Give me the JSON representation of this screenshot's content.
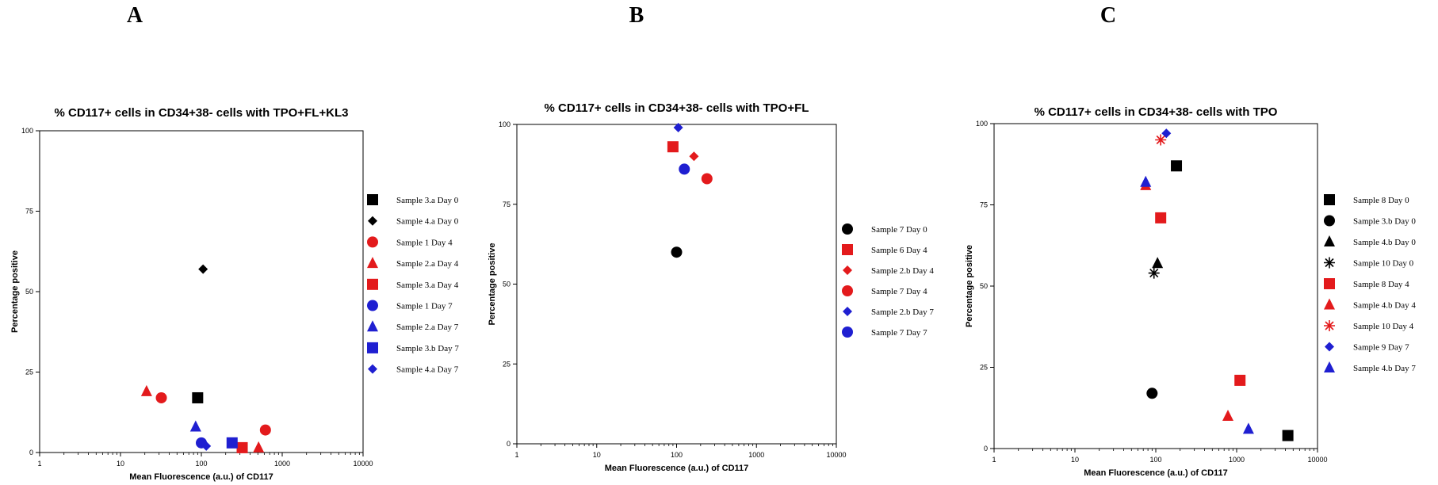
{
  "panels": [
    {
      "letter": "A"
    },
    {
      "letter": "B"
    },
    {
      "letter": "C"
    }
  ],
  "chart_data": [
    {
      "type": "scatter",
      "title": "% CD117+ cells in CD34+38- cells with TPO+FL+KL3",
      "xlabel": "Mean Fluorescence (a.u.) of      CD117",
      "ylabel": "Percentage positive",
      "xscale": "log",
      "xlim": [
        1,
        10000
      ],
      "ylim": [
        0,
        100
      ],
      "xticks": [
        "1",
        "10",
        "100",
        "1000",
        "10000"
      ],
      "yticks": [
        "0",
        "25",
        "50",
        "75",
        "100"
      ],
      "grid": false,
      "legend_position": "right",
      "series": [
        {
          "name": "Sample 3.a Day 0",
          "marker": "square",
          "color": "#000000",
          "points": [
            [
              90,
              17
            ]
          ]
        },
        {
          "name": "Sample 4.a Day 0",
          "marker": "diamond",
          "color": "#000000",
          "points": [
            [
              105,
              57
            ]
          ]
        },
        {
          "name": "Sample 1 Day 4",
          "marker": "circle",
          "color": "#e31a1c",
          "points": [
            [
              32,
              17
            ],
            [
              620,
              7
            ]
          ]
        },
        {
          "name": "Sample 2.a Day 4",
          "marker": "triangle",
          "color": "#e31a1c",
          "points": [
            [
              21,
              19
            ],
            [
              510,
              1.5
            ]
          ]
        },
        {
          "name": "Sample 3.a Day 4",
          "marker": "square",
          "color": "#e31a1c",
          "points": [
            [
              320,
              1.5
            ]
          ]
        },
        {
          "name": "Sample 1 Day 7",
          "marker": "circle",
          "color": "#1f1fd1",
          "points": [
            [
              100,
              3
            ]
          ]
        },
        {
          "name": "Sample 2.a Day 7",
          "marker": "triangle",
          "color": "#1f1fd1",
          "points": [
            [
              85,
              8
            ]
          ]
        },
        {
          "name": "Sample 3.b Day 7",
          "marker": "square",
          "color": "#1f1fd1",
          "points": [
            [
              240,
              3
            ]
          ]
        },
        {
          "name": "Sample 4.a Day 7",
          "marker": "diamond",
          "color": "#1f1fd1",
          "points": [
            [
              115,
              2
            ]
          ]
        }
      ]
    },
    {
      "type": "scatter",
      "title": "% CD117+ cells in CD34+38- cells with TPO+FL",
      "xlabel": "Mean Fluorescence (a.u.) of      CD117",
      "ylabel": "Percentage positive",
      "xscale": "log",
      "xlim": [
        1,
        10000
      ],
      "ylim": [
        0,
        100
      ],
      "xticks": [
        "1",
        "10",
        "100",
        "1000",
        "10000"
      ],
      "yticks": [
        "0",
        "25",
        "50",
        "75",
        "100"
      ],
      "grid": false,
      "legend_position": "right",
      "series": [
        {
          "name": "Sample 7 Day 0",
          "marker": "circle",
          "color": "#000000",
          "points": [
            [
              100,
              60
            ]
          ]
        },
        {
          "name": "Sample 6 Day 4",
          "marker": "square",
          "color": "#e31a1c",
          "points": [
            [
              90,
              93
            ]
          ]
        },
        {
          "name": "Sample 2.b Day 4",
          "marker": "diamond",
          "color": "#e31a1c",
          "points": [
            [
              165,
              90
            ]
          ]
        },
        {
          "name": "Sample 7 Day 4",
          "marker": "circle",
          "color": "#e31a1c",
          "points": [
            [
              240,
              83
            ]
          ]
        },
        {
          "name": "Sample 2.b Day 7",
          "marker": "diamond",
          "color": "#1f1fd1",
          "points": [
            [
              105,
              99
            ]
          ]
        },
        {
          "name": "Sample 7 Day 7",
          "marker": "circle",
          "color": "#1f1fd1",
          "points": [
            [
              125,
              86
            ]
          ]
        }
      ]
    },
    {
      "type": "scatter",
      "title": "% CD117+ cells in CD34+38- cells with TPO",
      "xlabel": "Mean Fluorescence (a.u.) of      CD117",
      "ylabel": "Percentage positive",
      "xscale": "log",
      "xlim": [
        1,
        10000
      ],
      "ylim": [
        0,
        100
      ],
      "xticks": [
        "1",
        "10",
        "100",
        "1000",
        "10000"
      ],
      "yticks": [
        "0",
        "25",
        "50",
        "75",
        "100"
      ],
      "grid": false,
      "legend_position": "right",
      "series": [
        {
          "name": "Sample 8 Day 0",
          "marker": "square",
          "color": "#000000",
          "points": [
            [
              180,
              87
            ],
            [
              4300,
              4
            ]
          ]
        },
        {
          "name": "Sample 3.b Day 0",
          "marker": "circle",
          "color": "#000000",
          "points": [
            [
              90,
              17
            ]
          ]
        },
        {
          "name": "Sample 4.b Day 0",
          "marker": "triangle",
          "color": "#000000",
          "points": [
            [
              105,
              57
            ]
          ]
        },
        {
          "name": "Sample 10 Day 0",
          "marker": "star",
          "color": "#000000",
          "points": [
            [
              95,
              54
            ]
          ]
        },
        {
          "name": "Sample 8 Day 4",
          "marker": "square",
          "color": "#e31a1c",
          "points": [
            [
              115,
              71
            ],
            [
              1100,
              21
            ]
          ]
        },
        {
          "name": "Sample 4.b Day 4",
          "marker": "triangle",
          "color": "#e31a1c",
          "points": [
            [
              75,
              81
            ],
            [
              780,
              10
            ]
          ]
        },
        {
          "name": "Sample 10 Day 4",
          "marker": "star",
          "color": "#e31a1c",
          "points": [
            [
              115,
              95
            ]
          ]
        },
        {
          "name": "Sample 9 Day 7",
          "marker": "diamond",
          "color": "#1f1fd1",
          "points": [
            [
              135,
              97
            ]
          ]
        },
        {
          "name": "Sample 4.b Day 7",
          "marker": "triangle",
          "color": "#1f1fd1",
          "points": [
            [
              75,
              82
            ],
            [
              1400,
              6
            ]
          ]
        }
      ]
    }
  ]
}
